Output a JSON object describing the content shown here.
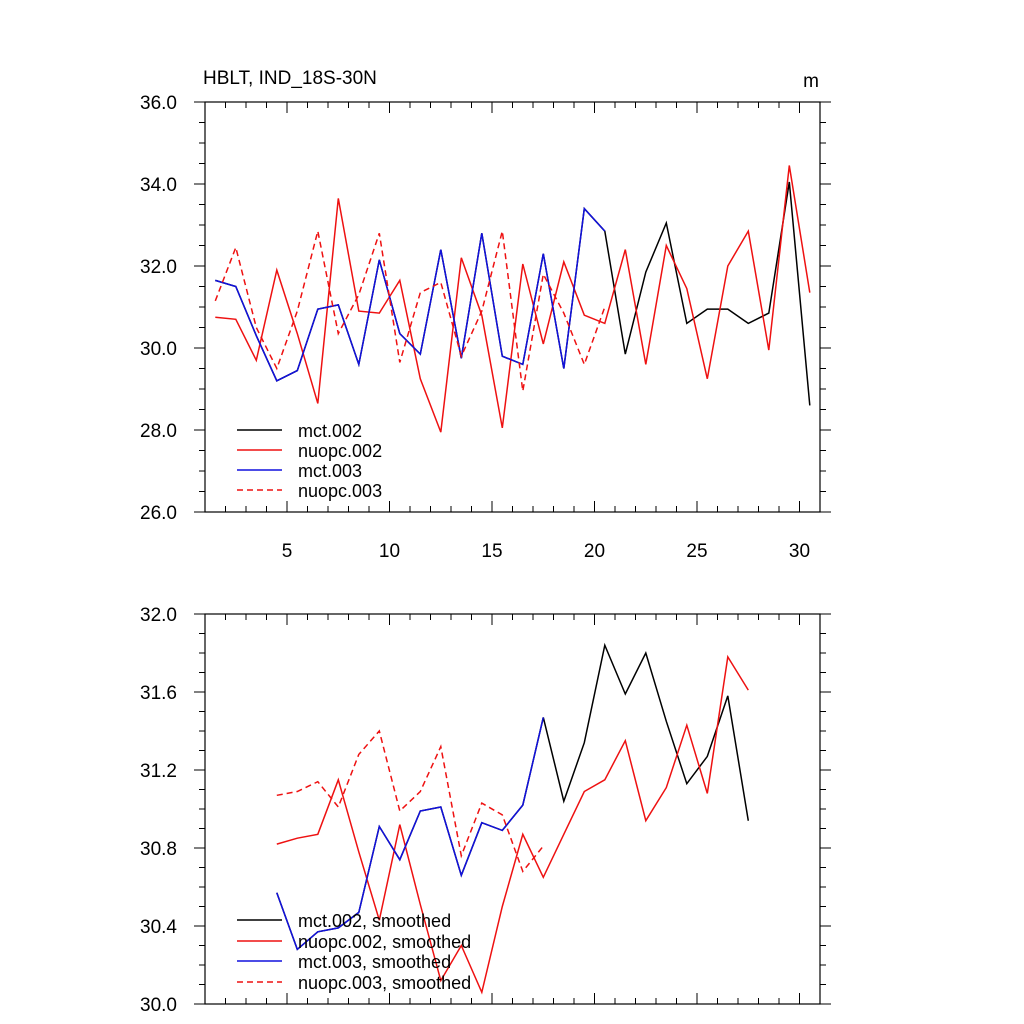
{
  "chart_data": [
    {
      "type": "line",
      "title": "HBLT, IND_18S-30N",
      "units": "m",
      "xlim": [
        1,
        31
      ],
      "ylim": [
        26,
        36
      ],
      "x_ticks": [
        5,
        10,
        15,
        20,
        25,
        30
      ],
      "x_tick_labels": [
        "5",
        "10",
        "15",
        "20",
        "25",
        "30"
      ],
      "x_minor_step": 1,
      "y_ticks": [
        26,
        28,
        30,
        32,
        34,
        36
      ],
      "y_tick_labels": [
        "26.0",
        "28.0",
        "30.0",
        "32.0",
        "34.0",
        "36.0"
      ],
      "y_minor_step": 0.5,
      "legend_position": "bottom-left",
      "series": [
        {
          "name": "mct.002",
          "color": "#000000",
          "dash": "solid",
          "x": [
            1.5,
            2.5,
            3.5,
            4.5,
            5.5,
            6.5,
            7.5,
            8.5,
            9.5,
            10.5,
            11.5,
            12.5,
            13.5,
            14.5,
            15.5,
            16.5,
            17.5,
            18.5,
            19.5,
            20.5,
            21.5,
            22.5,
            23.5,
            24.5,
            25.5,
            26.5,
            27.5,
            28.5,
            29.5,
            30.5
          ],
          "values": [
            31.65,
            31.5,
            30.3,
            29.2,
            29.45,
            30.95,
            31.05,
            29.6,
            32.15,
            30.35,
            29.85,
            32.4,
            29.75,
            32.8,
            29.8,
            29.6,
            32.3,
            29.5,
            33.4,
            32.85,
            29.85,
            31.85,
            33.05,
            30.6,
            30.95,
            30.95,
            30.6,
            30.85,
            34.05,
            28.6
          ]
        },
        {
          "name": "nuopc.002",
          "color": "#ee1111",
          "dash": "solid",
          "x": [
            1.5,
            2.5,
            3.5,
            4.5,
            5.5,
            6.5,
            7.5,
            8.5,
            9.5,
            10.5,
            11.5,
            12.5,
            13.5,
            14.5,
            15.5,
            16.5,
            17.5,
            18.5,
            19.5,
            20.5,
            21.5,
            22.5,
            23.5,
            24.5,
            25.5,
            26.5,
            27.5,
            28.5,
            29.5,
            30.5
          ],
          "values": [
            30.75,
            30.7,
            29.7,
            31.9,
            30.35,
            28.65,
            33.65,
            30.9,
            30.85,
            31.65,
            29.25,
            27.95,
            32.2,
            30.8,
            28.05,
            32.05,
            30.1,
            32.1,
            30.8,
            30.6,
            32.4,
            29.6,
            32.5,
            31.45,
            29.25,
            32.0,
            32.85,
            29.95,
            34.45,
            31.35
          ]
        },
        {
          "name": "mct.003",
          "color": "#1111dd",
          "dash": "solid",
          "x": [
            1.5,
            2.5,
            3.5,
            4.5,
            5.5,
            6.5,
            7.5,
            8.5,
            9.5,
            10.5,
            11.5,
            12.5,
            13.5,
            14.5,
            15.5,
            16.5,
            17.5,
            18.5,
            19.5,
            20.5
          ],
          "values": [
            31.65,
            31.5,
            30.3,
            29.2,
            29.45,
            30.95,
            31.05,
            29.6,
            32.15,
            30.35,
            29.85,
            32.4,
            29.75,
            32.8,
            29.8,
            29.6,
            32.3,
            29.5,
            33.4,
            32.85
          ]
        },
        {
          "name": "nuopc.003",
          "color": "#ee1111",
          "dash": "dashed",
          "x": [
            1.5,
            2.5,
            3.5,
            4.5,
            5.5,
            6.5,
            7.5,
            8.5,
            9.5,
            10.5,
            11.5,
            12.5,
            13.5,
            14.5,
            15.5,
            16.5,
            17.5,
            18.5,
            19.5,
            20.5
          ],
          "values": [
            31.15,
            32.45,
            30.5,
            29.5,
            30.9,
            32.85,
            30.35,
            31.3,
            32.8,
            29.65,
            31.35,
            31.6,
            29.8,
            30.9,
            32.85,
            28.95,
            31.8,
            30.85,
            29.6,
            31.0
          ]
        }
      ]
    },
    {
      "type": "line",
      "title": "",
      "xlim": [
        1,
        31
      ],
      "ylim": [
        30.0,
        32.0
      ],
      "x_ticks": [
        5,
        10,
        15,
        20,
        25,
        30
      ],
      "x_minor_step": 1,
      "y_ticks": [
        30.0,
        30.4,
        30.8,
        31.2,
        31.6,
        32.0
      ],
      "y_tick_labels": [
        "30.0",
        "30.4",
        "30.8",
        "31.2",
        "31.6",
        "32.0"
      ],
      "y_minor_step": 0.1,
      "legend_position": "bottom-left",
      "series": [
        {
          "name": "mct.002, smoothed",
          "color": "#000000",
          "dash": "solid",
          "x": [
            4.5,
            5.5,
            6.5,
            7.5,
            8.5,
            9.5,
            10.5,
            11.5,
            12.5,
            13.5,
            14.5,
            15.5,
            16.5,
            17.5,
            18.5,
            19.5,
            20.5,
            21.5,
            22.5,
            23.5,
            24.5,
            25.5,
            26.5,
            27.5
          ],
          "values": [
            30.57,
            30.28,
            30.37,
            30.39,
            30.47,
            30.91,
            30.74,
            30.99,
            31.01,
            30.66,
            30.93,
            30.89,
            31.02,
            31.47,
            31.04,
            31.34,
            31.84,
            31.59,
            31.8,
            31.45,
            31.13,
            31.27,
            31.58,
            30.94
          ]
        },
        {
          "name": "nuopc.002, smoothed",
          "color": "#ee1111",
          "dash": "solid",
          "x": [
            4.5,
            5.5,
            6.5,
            7.5,
            8.5,
            9.5,
            10.5,
            11.5,
            12.5,
            13.5,
            14.5,
            15.5,
            16.5,
            17.5,
            18.5,
            19.5,
            20.5,
            21.5,
            22.5,
            23.5,
            24.5,
            25.5,
            26.5,
            27.5
          ],
          "values": [
            30.82,
            30.85,
            30.87,
            31.15,
            30.78,
            30.43,
            30.92,
            30.51,
            30.12,
            30.3,
            30.06,
            30.5,
            30.87,
            30.65,
            30.87,
            31.09,
            31.15,
            31.35,
            30.94,
            31.11,
            31.43,
            31.08,
            31.78,
            31.61
          ]
        },
        {
          "name": "mct.003, smoothed",
          "color": "#1111dd",
          "dash": "solid",
          "x": [
            4.5,
            5.5,
            6.5,
            7.5,
            8.5,
            9.5,
            10.5,
            11.5,
            12.5,
            13.5,
            14.5,
            15.5,
            16.5,
            17.5
          ],
          "values": [
            30.57,
            30.28,
            30.37,
            30.39,
            30.47,
            30.91,
            30.74,
            30.99,
            31.01,
            30.66,
            30.93,
            30.89,
            31.02,
            31.47
          ]
        },
        {
          "name": "nuopc.003, smoothed",
          "color": "#ee1111",
          "dash": "dashed",
          "x": [
            4.5,
            5.5,
            6.5,
            7.5,
            8.5,
            9.5,
            10.5,
            11.5,
            12.5,
            13.5,
            14.5,
            15.5,
            16.5,
            17.5
          ],
          "values": [
            31.07,
            31.09,
            31.14,
            31.01,
            31.28,
            31.4,
            30.99,
            31.09,
            31.32,
            30.76,
            31.03,
            30.97,
            30.68,
            30.81
          ]
        }
      ]
    }
  ]
}
